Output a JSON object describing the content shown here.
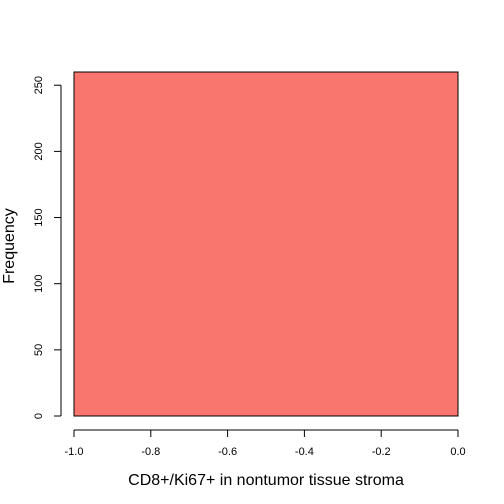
{
  "chart_data": {
    "type": "bar",
    "title": "",
    "xlabel": "CD8+/Ki67+ in nontumor tissue stroma",
    "ylabel": "Frequency",
    "bins": [
      {
        "x0": -1.0,
        "x1": 0.0,
        "value": 260
      }
    ],
    "xlim": [
      -1.0,
      0.0
    ],
    "ylim": [
      0,
      260
    ],
    "x_ticks": [
      -1.0,
      -0.8,
      -0.6,
      -0.4,
      -0.2,
      0.0
    ],
    "x_tick_labels": [
      "-1.0",
      "-0.8",
      "-0.6",
      "-0.4",
      "-0.2",
      "0.0"
    ],
    "y_ticks": [
      0,
      50,
      100,
      150,
      200,
      250
    ],
    "y_tick_labels": [
      "0",
      "50",
      "100",
      "150",
      "200",
      "250"
    ],
    "colors": {
      "bar_fill": "#F8766D",
      "bar_stroke": "#000000",
      "axis": "#000000"
    },
    "grid": false,
    "legend": "none"
  }
}
